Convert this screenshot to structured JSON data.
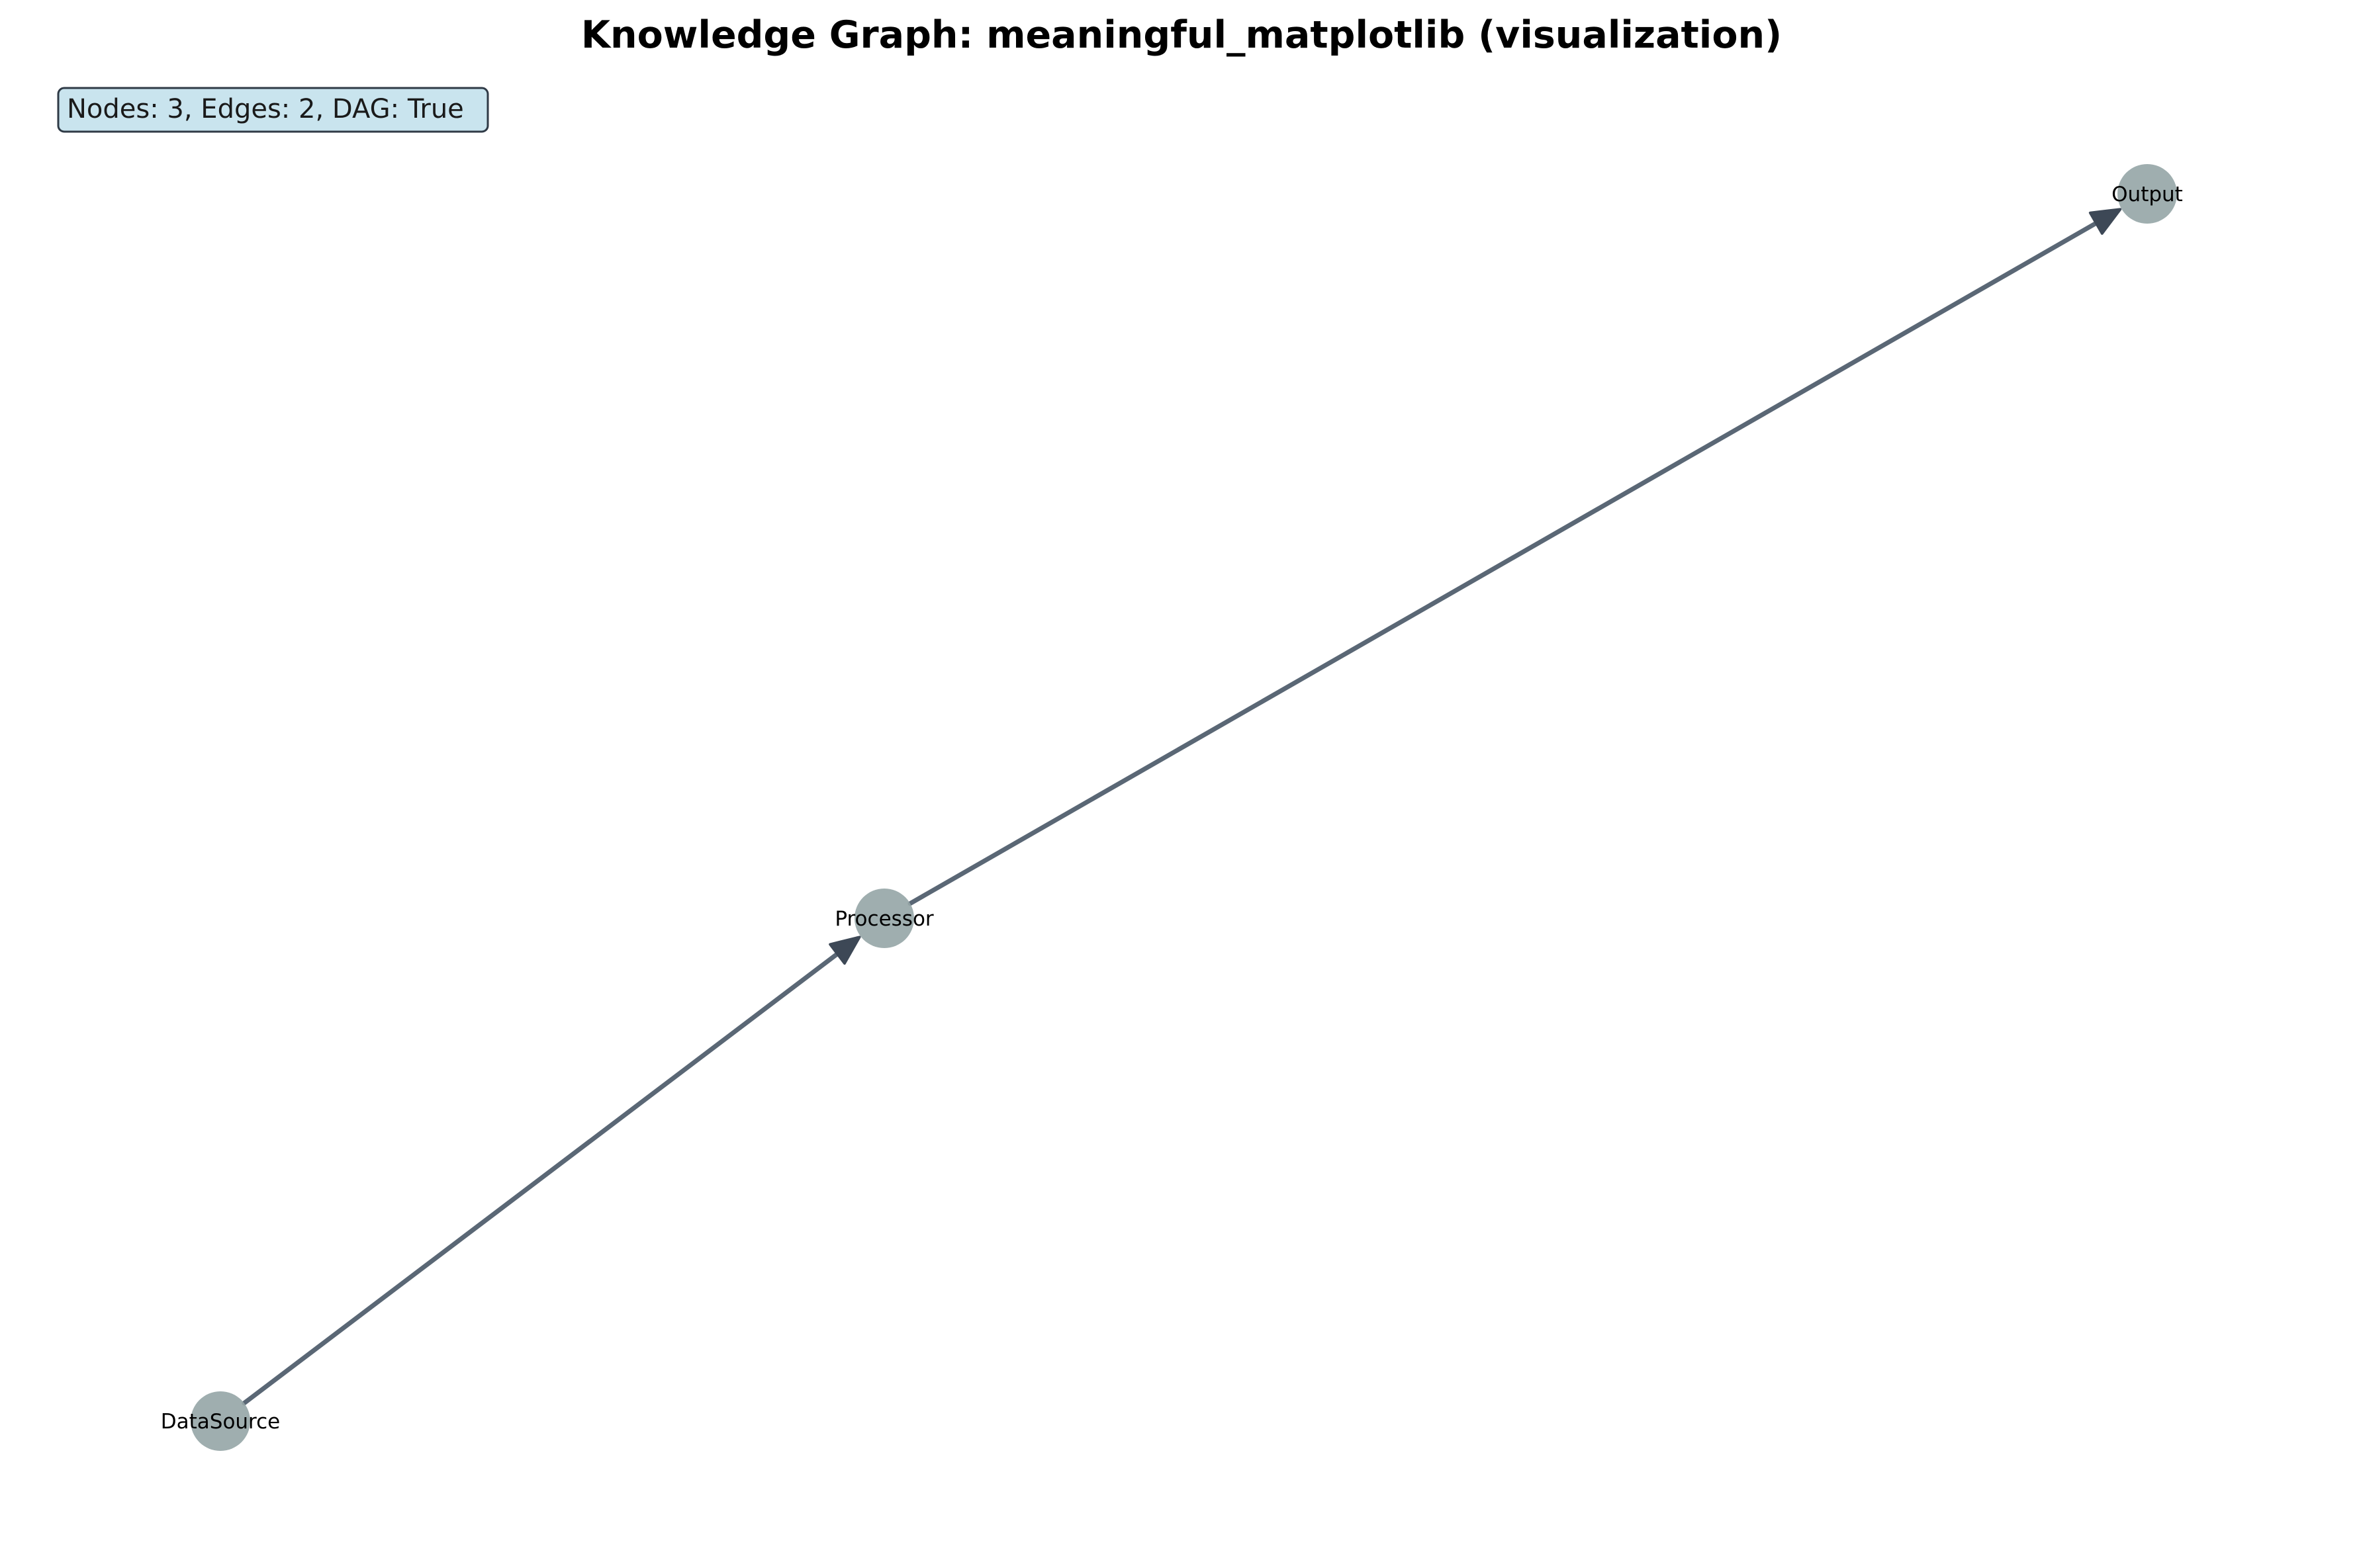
{
  "title": "Knowledge Graph: meaningful_matplotlib (visualization)",
  "stats": {
    "text": "Nodes: 3, Edges: 2, DAG: True",
    "background": "#c9e4ee",
    "border": "#2f3a46"
  },
  "colors": {
    "node_fill": "#95a5a6",
    "edge": "#5a6775",
    "arrow_head": "#3d4856"
  },
  "nodes": [
    {
      "id": "DataSource",
      "label": "DataSource"
    },
    {
      "id": "Processor",
      "label": "Processor"
    },
    {
      "id": "Output",
      "label": "Output"
    }
  ],
  "edges": [
    {
      "from": "DataSource",
      "to": "Processor"
    },
    {
      "from": "Processor",
      "to": "Output"
    }
  ]
}
